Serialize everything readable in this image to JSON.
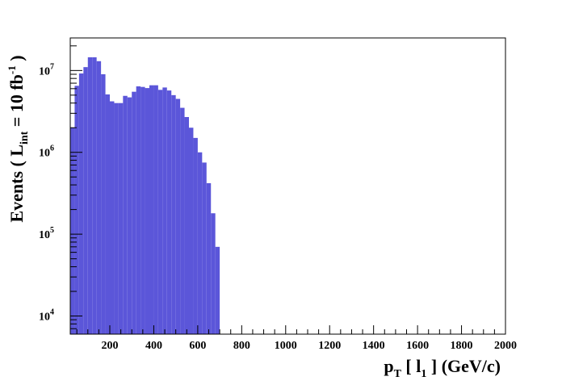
{
  "chart_data": {
    "type": "bar",
    "title": "",
    "xlabel": {
      "main": "p",
      "main_sub": "T",
      "rest": " [ l",
      "rest_sub": "1",
      "tail": " ] (GeV/c)"
    },
    "ylabel": {
      "lead": "Events  ( L",
      "lead_sub": "int",
      "mid": " = 10 fb",
      "mid_sup": "-1",
      "tail": " )"
    },
    "xlim": [
      20,
      2000
    ],
    "ylim": [
      6000,
      25000000
    ],
    "y_scale": "log",
    "grid": false,
    "legend": "none",
    "bar_color": "#5b56d9",
    "bin_width": 20,
    "bin_edges_start": 20,
    "values": [
      2000000,
      6500000,
      9200000,
      11000000,
      14500000,
      14500000,
      13000000,
      9000000,
      5100000,
      4200000,
      4000000,
      4000000,
      4900000,
      4700000,
      5500000,
      6400000,
      6300000,
      6100000,
      6600000,
      6600000,
      5800000,
      6200000,
      5700000,
      5000000,
      4500000,
      3500000,
      2700000,
      2000000,
      1500000,
      1000000,
      750000,
      420000,
      180000,
      70000,
      5000,
      5000,
      5000,
      5000,
      5000,
      5000,
      5000,
      5000,
      5000,
      5000,
      5000,
      5000,
      5000,
      5000,
      5000,
      5000,
      5000,
      5000,
      5000,
      5000,
      5000,
      5000,
      5000,
      5000,
      5000,
      5000,
      5000,
      5000,
      5000,
      5000,
      5000,
      5000,
      5000,
      5000,
      5000,
      5000,
      5000,
      5000,
      5000,
      5000,
      5000,
      5000,
      5000,
      5000,
      5000,
      5000,
      5000,
      5000,
      5000,
      5000,
      5000,
      5000,
      5000,
      5000,
      5000,
      5000,
      5000,
      5000,
      5000,
      5000,
      5000,
      5000,
      5000,
      5000,
      5000
    ],
    "x_ticks": [
      200,
      400,
      600,
      800,
      1000,
      1200,
      1400,
      1600,
      1800,
      2000
    ],
    "y_ticks": [
      {
        "value": 10000,
        "base": "10",
        "exp": "4"
      },
      {
        "value": 100000,
        "base": "10",
        "exp": "5"
      },
      {
        "value": 1000000,
        "base": "10",
        "exp": "6"
      },
      {
        "value": 10000000,
        "base": "10",
        "exp": "7"
      }
    ]
  }
}
